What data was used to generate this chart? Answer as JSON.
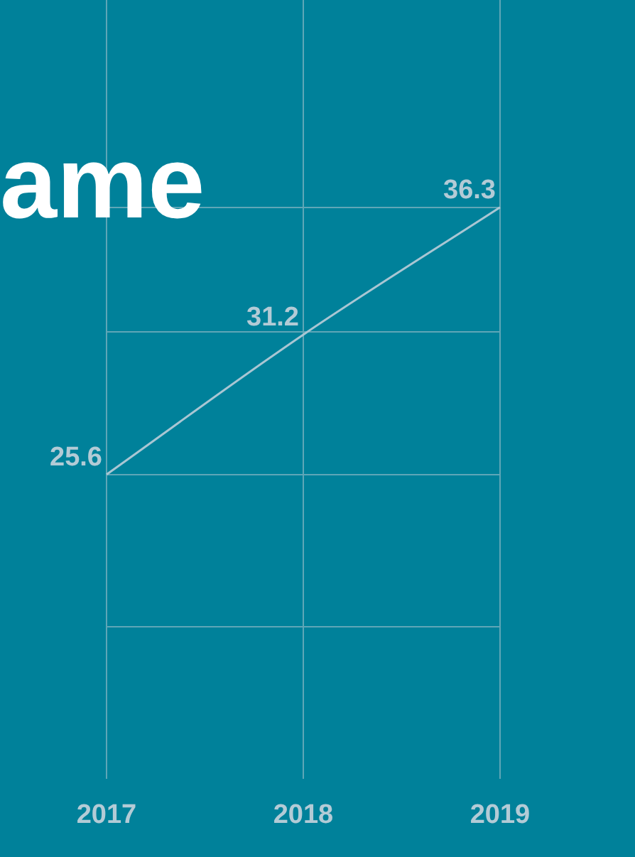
{
  "chart_data": {
    "type": "line",
    "title": "ame",
    "categories": [
      "2017",
      "2018",
      "2019"
    ],
    "series": [
      {
        "color": "#a9c6d3",
        "values": [
          25.6,
          31.2,
          36.3
        ]
      }
    ],
    "ylim": [
      13.4,
      44.6
    ],
    "yticks": [
      {
        "value": 19.5,
        "label": null
      },
      {
        "value": 25.6,
        "label": null
      },
      {
        "value": 31.3,
        "label": null
      },
      {
        "value": 36.3,
        "label": null
      }
    ],
    "grid": true,
    "data_labels": true,
    "marker": "none",
    "tick_labels": "x"
  }
}
